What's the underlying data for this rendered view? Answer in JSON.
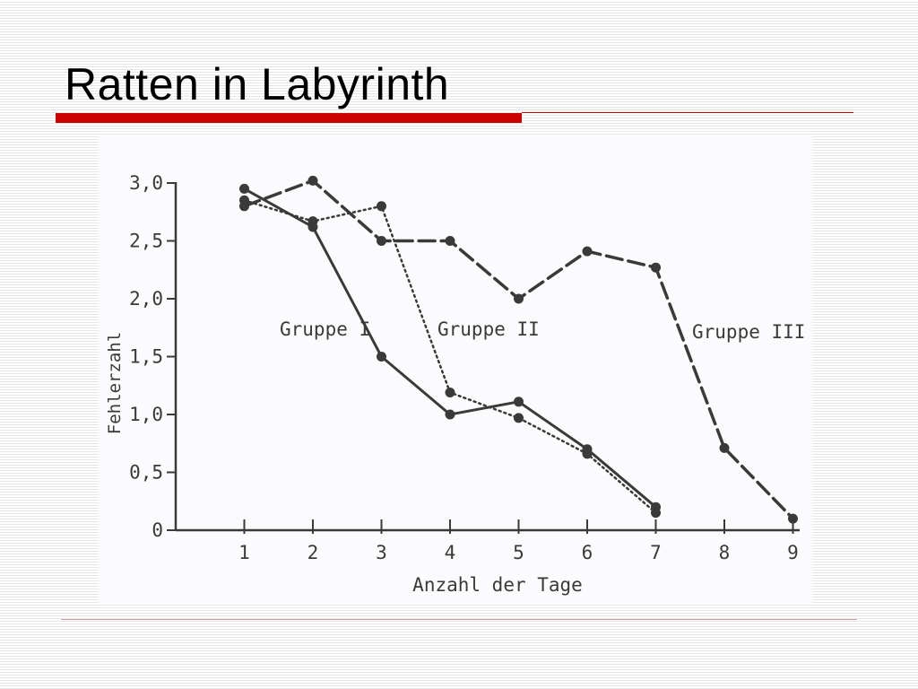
{
  "slide": {
    "title": "Ratten in Labyrinth"
  },
  "colors": {
    "title_bar": "#cc0000",
    "ink": "#3a3a3a",
    "chart_background": "#fbfbfd"
  },
  "chart_data": {
    "type": "line",
    "title": "",
    "xlabel": "Anzahl der Tage",
    "ylabel": "Fehlerzahl",
    "xlim": [
      0,
      9
    ],
    "ylim": [
      0,
      3.0
    ],
    "x_ticks": [
      1,
      2,
      3,
      4,
      5,
      6,
      7,
      8,
      9
    ],
    "x_tick_labels": [
      "1",
      "2",
      "3",
      "4",
      "5",
      "6",
      "7",
      "8",
      "9"
    ],
    "y_ticks": [
      0,
      0.5,
      1.0,
      1.5,
      2.0,
      2.5,
      3.0
    ],
    "y_tick_labels": [
      "0",
      "0,5",
      "1,0",
      "1,5",
      "2,0",
      "2,5",
      "3,0"
    ],
    "grid": false,
    "legend": "none",
    "series": [
      {
        "name": "Gruppe I",
        "style": "solid",
        "x": [
          1,
          2,
          3,
          4,
          5,
          6,
          7
        ],
        "y": [
          2.95,
          2.62,
          1.5,
          1.0,
          1.11,
          0.7,
          0.2
        ]
      },
      {
        "name": "Gruppe II",
        "style": "dotted",
        "x": [
          1,
          2,
          3,
          4,
          5,
          6,
          7
        ],
        "y": [
          2.85,
          2.67,
          2.8,
          1.19,
          0.97,
          0.66,
          0.15
        ]
      },
      {
        "name": "Gruppe III",
        "style": "dashed",
        "x": [
          1,
          2,
          3,
          4,
          5,
          6,
          7,
          8,
          9
        ],
        "y": [
          2.8,
          3.02,
          2.5,
          2.5,
          2.0,
          2.41,
          2.27,
          0.71,
          0.1
        ]
      }
    ]
  }
}
